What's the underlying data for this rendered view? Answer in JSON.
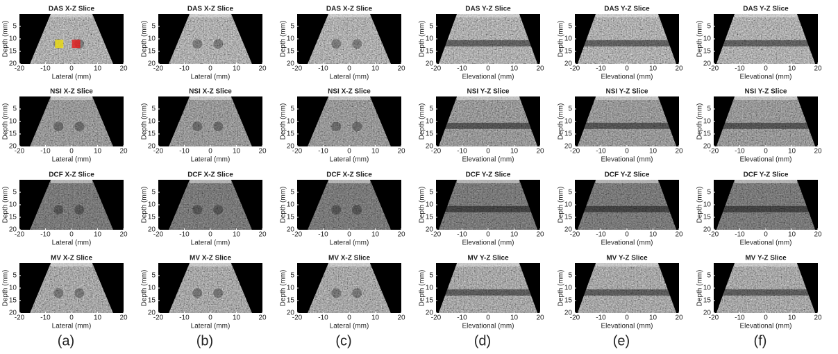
{
  "ylabel": "Depth (mm)",
  "xticks": [
    -20,
    -10,
    0,
    10,
    20
  ],
  "yticks": [
    5,
    10,
    15,
    20
  ],
  "columns": [
    {
      "label": "(a)",
      "panels": [
        {
          "title": "DAS X-Z Slice",
          "xlabel": "Lateral (mm)"
        },
        {
          "title": "NSI X-Z Slice",
          "xlabel": "Lateral (mm)"
        },
        {
          "title": "DCF X-Z Slice",
          "xlabel": "Lateral (mm)"
        },
        {
          "title": "MV X-Z Slice",
          "xlabel": "Lateral (mm)"
        }
      ]
    },
    {
      "label": "(b)",
      "panels": [
        {
          "title": "DAS X-Z Slice",
          "xlabel": "Lateral (mm)"
        },
        {
          "title": "NSI X-Z Slice",
          "xlabel": "Lateral (mm)"
        },
        {
          "title": "DCF X-Z Slice",
          "xlabel": "Lateral (mm)"
        },
        {
          "title": "MV X-Z Slice",
          "xlabel": "Lateral (mm)"
        }
      ]
    },
    {
      "label": "(c)",
      "panels": [
        {
          "title": "DAS X-Z Slice",
          "xlabel": "Lateral (mm)"
        },
        {
          "title": "NSI X-Z Slice",
          "xlabel": "Lateral (mm)"
        },
        {
          "title": "DCF X-Z Slice",
          "xlabel": "Lateral (mm)"
        },
        {
          "title": "MV X-Z Slice",
          "xlabel": "Lateral (mm)"
        }
      ]
    },
    {
      "label": "(d)",
      "panels": [
        {
          "title": "DAS Y-Z Slice",
          "xlabel": "Elevational (mm)"
        },
        {
          "title": "NSI Y-Z Slice",
          "xlabel": "Elevational (mm)"
        },
        {
          "title": "DCF Y-Z Slice",
          "xlabel": "Elevational (mm)"
        },
        {
          "title": "MV Y-Z Slice",
          "xlabel": "Elevational (mm)"
        }
      ]
    },
    {
      "label": "(e)",
      "panels": [
        {
          "title": "DAS Y-Z Slice",
          "xlabel": "Elevational (mm)"
        },
        {
          "title": "NSI Y-Z Slice",
          "xlabel": "Elevational (mm)"
        },
        {
          "title": "DCF Y-Z Slice",
          "xlabel": "Elevational (mm)"
        },
        {
          "title": "MV Y-Z Slice",
          "xlabel": "Elevational (mm)"
        }
      ]
    },
    {
      "label": "(f)",
      "panels": [
        {
          "title": "DAS Y-Z Slice",
          "xlabel": "Elevational (mm)"
        },
        {
          "title": "NSI Y-Z Slice",
          "xlabel": "Elevational (mm)"
        },
        {
          "title": "DCF Y-Z Slice",
          "xlabel": "Elevational (mm)"
        },
        {
          "title": "MV Y-Z Slice",
          "xlabel": "Elevational (mm)"
        }
      ]
    }
  ]
}
